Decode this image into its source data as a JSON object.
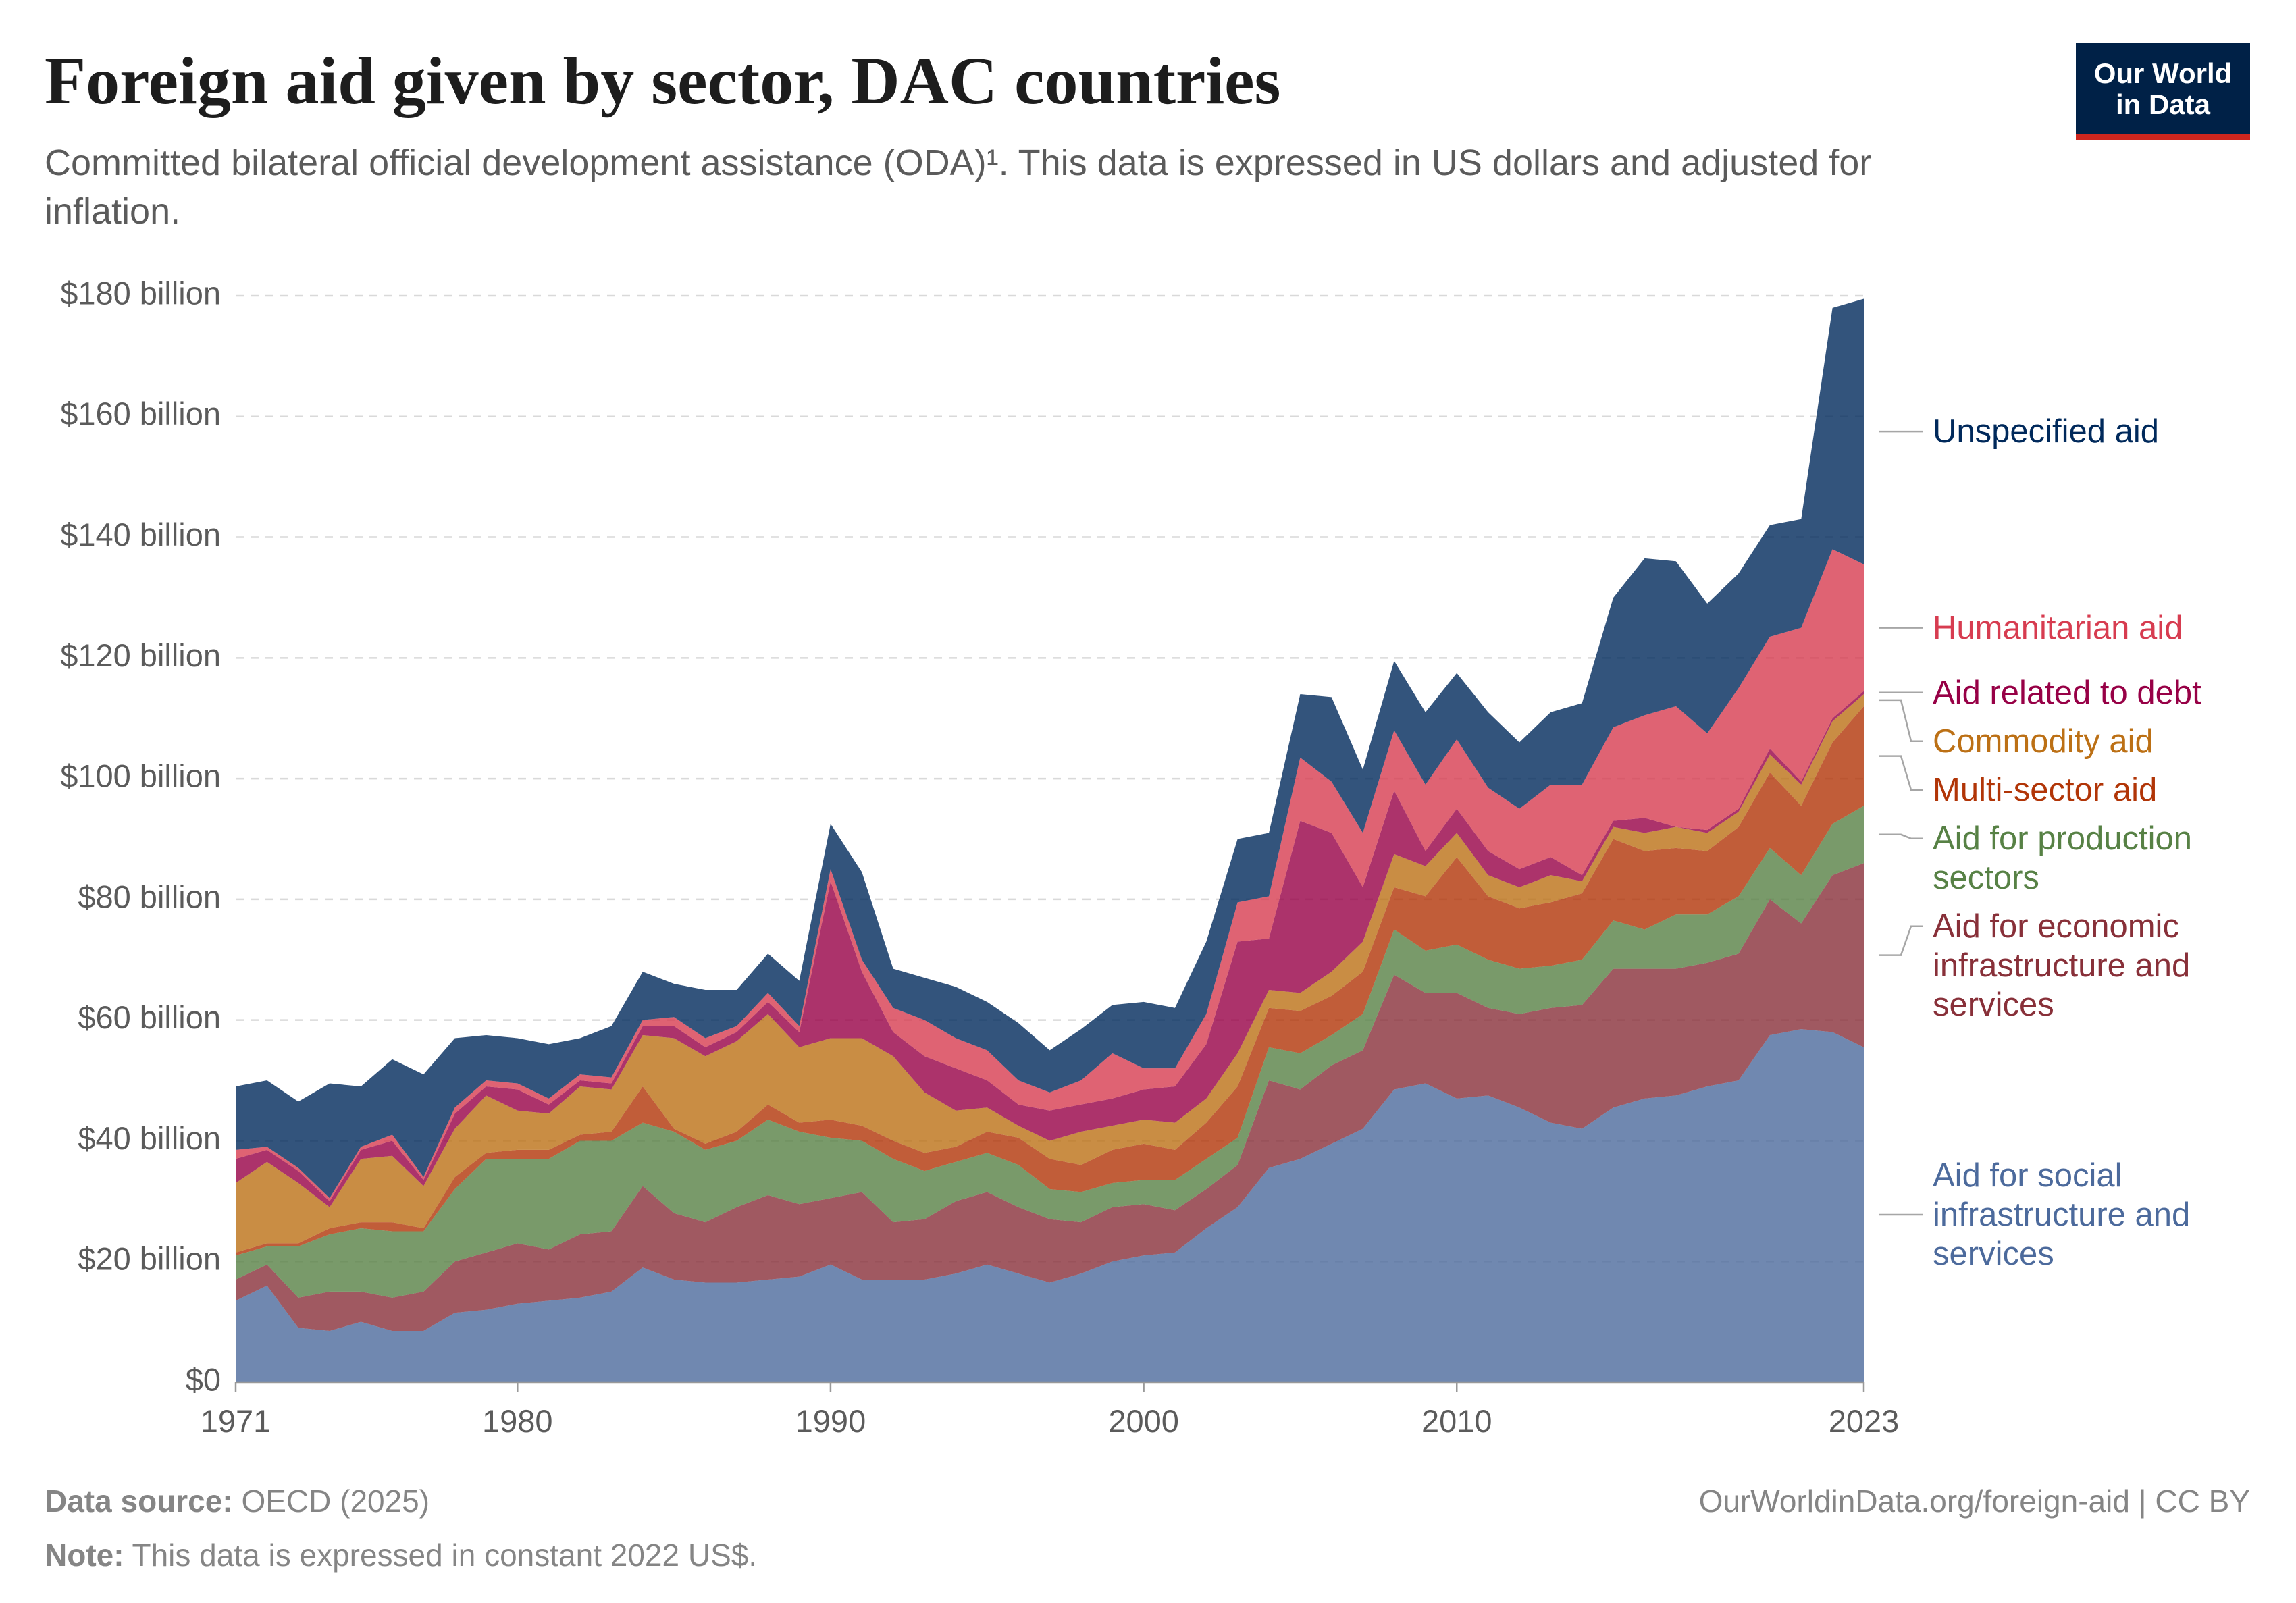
{
  "chart_data": {
    "type": "stacked_area",
    "title": "Foreign aid given by sector, DAC countries",
    "subtitle": "Committed bilateral official development assistance (ODA)¹. This data is expressed in US dollars and adjusted for inflation.",
    "logo": [
      "Our World",
      "in Data"
    ],
    "source": {
      "label": "Data source:",
      "text": "OECD (2025)"
    },
    "note": {
      "label": "Note:",
      "text": "This data is expressed in constant 2022 US$."
    },
    "url": "OurWorldinData.org/foreign-aid | CC BY",
    "x": [
      1971,
      1972,
      1973,
      1974,
      1975,
      1976,
      1977,
      1978,
      1979,
      1980,
      1981,
      1982,
      1983,
      1984,
      1985,
      1986,
      1987,
      1988,
      1989,
      1990,
      1991,
      1992,
      1993,
      1994,
      1995,
      1996,
      1997,
      1998,
      1999,
      2000,
      2001,
      2002,
      2003,
      2004,
      2005,
      2006,
      2007,
      2008,
      2009,
      2010,
      2011,
      2012,
      2013,
      2014,
      2015,
      2016,
      2017,
      2018,
      2019,
      2020,
      2021,
      2022,
      2023
    ],
    "xlim": [
      1971,
      2023
    ],
    "xticks": [
      1971,
      1980,
      1990,
      2000,
      2010,
      2023
    ],
    "ylim": [
      0,
      180
    ],
    "yticks": [
      {
        "value": 0,
        "label": "$0"
      },
      {
        "value": 20,
        "label": "$20 billion"
      },
      {
        "value": 40,
        "label": "$40 billion"
      },
      {
        "value": 60,
        "label": "$60 billion"
      },
      {
        "value": 80,
        "label": "$80 billion"
      },
      {
        "value": 100,
        "label": "$100 billion"
      },
      {
        "value": 120,
        "label": "$120 billion"
      },
      {
        "value": 140,
        "label": "$140 billion"
      },
      {
        "value": 160,
        "label": "$160 billion"
      },
      {
        "value": 180,
        "label": "$180 billion"
      }
    ],
    "grid": true,
    "series": [
      {
        "name": "Aid for social infrastructure and services",
        "color": "#4c6a9c",
        "values": [
          13.5,
          16,
          9,
          8.5,
          10,
          8.5,
          8.5,
          11.5,
          12,
          13,
          13.5,
          14,
          15,
          19,
          17,
          16.5,
          16.5,
          17,
          17.5,
          19.5,
          17,
          17,
          17,
          18,
          19.5,
          18,
          16.5,
          18,
          20,
          21,
          21.5,
          25.5,
          29,
          35.5,
          37,
          39.5,
          42,
          48.5,
          49.5,
          47,
          47.5,
          45.5,
          43,
          42,
          45.5,
          47,
          47.5,
          49,
          50,
          57.5,
          58.5,
          58,
          55.5
        ]
      },
      {
        "name": "Aid for economic infrastructure and services",
        "color": "#883039",
        "values": [
          3.5,
          3.5,
          5,
          6.5,
          5,
          5.5,
          6.5,
          8.5,
          9.5,
          10,
          8.5,
          10.5,
          10,
          13.5,
          11,
          10,
          12.5,
          14,
          12,
          11,
          14.5,
          9.5,
          10,
          12,
          12,
          11,
          10.5,
          8.5,
          9,
          8.5,
          7,
          6.5,
          7,
          14.5,
          11.5,
          13,
          13,
          19,
          15,
          17.5,
          14.5,
          15.5,
          19,
          20.5,
          23,
          21.5,
          21,
          20.5,
          21,
          22.5,
          17.5,
          26,
          30.5
        ]
      },
      {
        "name": "Aid for production sectors",
        "color": "#578145",
        "values": [
          4,
          3,
          8.5,
          9.5,
          10.5,
          11,
          10,
          12,
          15.5,
          14,
          15,
          15.5,
          15,
          10.5,
          13.5,
          12,
          11,
          12.5,
          12,
          10,
          8.5,
          10.5,
          8,
          6.5,
          6.5,
          7,
          5,
          5,
          4,
          4,
          5,
          5,
          4.5,
          5.5,
          6,
          5,
          6,
          7.5,
          7,
          8,
          8,
          7.5,
          7,
          7.5,
          8,
          6.5,
          9,
          8,
          9.5,
          8.5,
          8,
          8.5,
          9.5
        ]
      },
      {
        "name": "Multi-sector aid",
        "color": "#b13507",
        "values": [
          0.5,
          0.5,
          0.5,
          1,
          1,
          1.5,
          0.5,
          2,
          1,
          1.5,
          1.5,
          1,
          1.5,
          6,
          0.5,
          1,
          1.5,
          2.5,
          1.5,
          3,
          2.5,
          3,
          3,
          2.5,
          3.5,
          4.5,
          5,
          4.5,
          5.5,
          6,
          5,
          6,
          8.5,
          6.5,
          7,
          6.5,
          7,
          7,
          9,
          14.5,
          10.5,
          10,
          10.5,
          11,
          13.5,
          13,
          11,
          10.5,
          11.5,
          12.5,
          11.5,
          13.5,
          16.5
        ]
      },
      {
        "name": "Commodity aid",
        "color": "#bc7015",
        "values": [
          11.5,
          13.5,
          10,
          3.5,
          10.5,
          11,
          7,
          8,
          9.5,
          6.5,
          6,
          8,
          7,
          8.5,
          15,
          14.5,
          15,
          15,
          12.5,
          13.5,
          14.5,
          14,
          10,
          6,
          4,
          2,
          3,
          5.5,
          4,
          4,
          4.5,
          4,
          5.5,
          3,
          3,
          4,
          5,
          5.5,
          5,
          4,
          3.5,
          3.5,
          4.5,
          2,
          2,
          3,
          3.5,
          3,
          2.5,
          3,
          3.5,
          3.5,
          2
        ]
      },
      {
        "name": "Aid related to debt",
        "color": "#970046",
        "values": [
          4,
          2,
          2,
          1,
          1.5,
          2.5,
          1,
          2.5,
          1.5,
          3.5,
          1.5,
          1,
          1,
          1.5,
          2,
          1.5,
          1.5,
          2,
          2.5,
          26,
          11,
          4,
          6,
          7,
          4.5,
          3.5,
          5,
          4.5,
          4.5,
          5,
          6,
          9,
          18.5,
          8.5,
          28.5,
          23,
          9,
          10.5,
          2.5,
          4,
          4,
          3,
          3,
          1,
          1,
          2.5,
          0,
          0.5,
          0.5,
          1,
          0.5,
          0.5,
          0.5
        ]
      },
      {
        "name": "Humanitarian aid",
        "color": "#d73c50",
        "values": [
          1.5,
          0.5,
          0.5,
          0.5,
          0.5,
          1,
          0.5,
          1,
          1,
          1,
          1,
          1,
          1,
          1,
          1.5,
          1.5,
          1,
          1.5,
          1,
          2,
          2,
          4,
          6,
          5,
          5,
          4,
          3,
          4,
          7.5,
          3.5,
          3,
          5,
          6.5,
          7,
          10.5,
          8.5,
          9,
          10,
          11,
          11.5,
          10.5,
          10,
          12,
          15,
          15.5,
          17,
          20,
          16,
          20,
          18.5,
          25.5,
          28,
          21
        ]
      },
      {
        "name": "Unspecified aid",
        "color": "#00295b",
        "values": [
          10.5,
          11,
          11,
          19,
          10,
          12.5,
          17,
          11.5,
          7.5,
          7.5,
          9,
          6,
          8.5,
          8,
          5.5,
          8,
          6,
          6.5,
          7.5,
          7.5,
          14.5,
          6.5,
          7,
          8.5,
          8,
          9.5,
          7,
          8.5,
          8,
          11,
          10,
          12,
          10.5,
          10.5,
          10.5,
          14,
          10.5,
          11.5,
          12,
          11,
          12.5,
          11,
          12,
          13.5,
          21.5,
          26,
          24,
          21.5,
          19,
          18.5,
          18,
          40,
          44
        ]
      }
    ]
  }
}
